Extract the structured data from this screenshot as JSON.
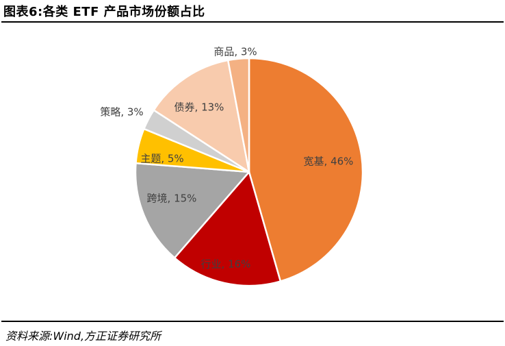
{
  "title": "图表6:各类 ETF 产品市场份额占比",
  "source": "资料来源:Wind,方正证券研究所",
  "chart_data": {
    "type": "pie",
    "title": "",
    "slices": [
      {
        "label": "宽基, 46%",
        "name": "宽基",
        "value": 46,
        "color": "#ED7D31"
      },
      {
        "label": "行业, 16%",
        "name": "行业",
        "value": 16,
        "color": "#C00000"
      },
      {
        "label": "跨境, 15%",
        "name": "跨境",
        "value": 15,
        "color": "#A5A5A5"
      },
      {
        "label": "主题, 5%",
        "name": "主题",
        "value": 5,
        "color": "#FFC000"
      },
      {
        "label": "策略, 3%",
        "name": "策略",
        "value": 3,
        "color": "#D0D0D0"
      },
      {
        "label": "债券, 13%",
        "name": "债券",
        "value": 13,
        "color": "#F8CBAD"
      },
      {
        "label": "商品, 3%",
        "name": "商品",
        "value": 3,
        "color": "#F4B183"
      }
    ],
    "start": "12 o'clock",
    "direction": "clockwise",
    "legend": "none"
  }
}
